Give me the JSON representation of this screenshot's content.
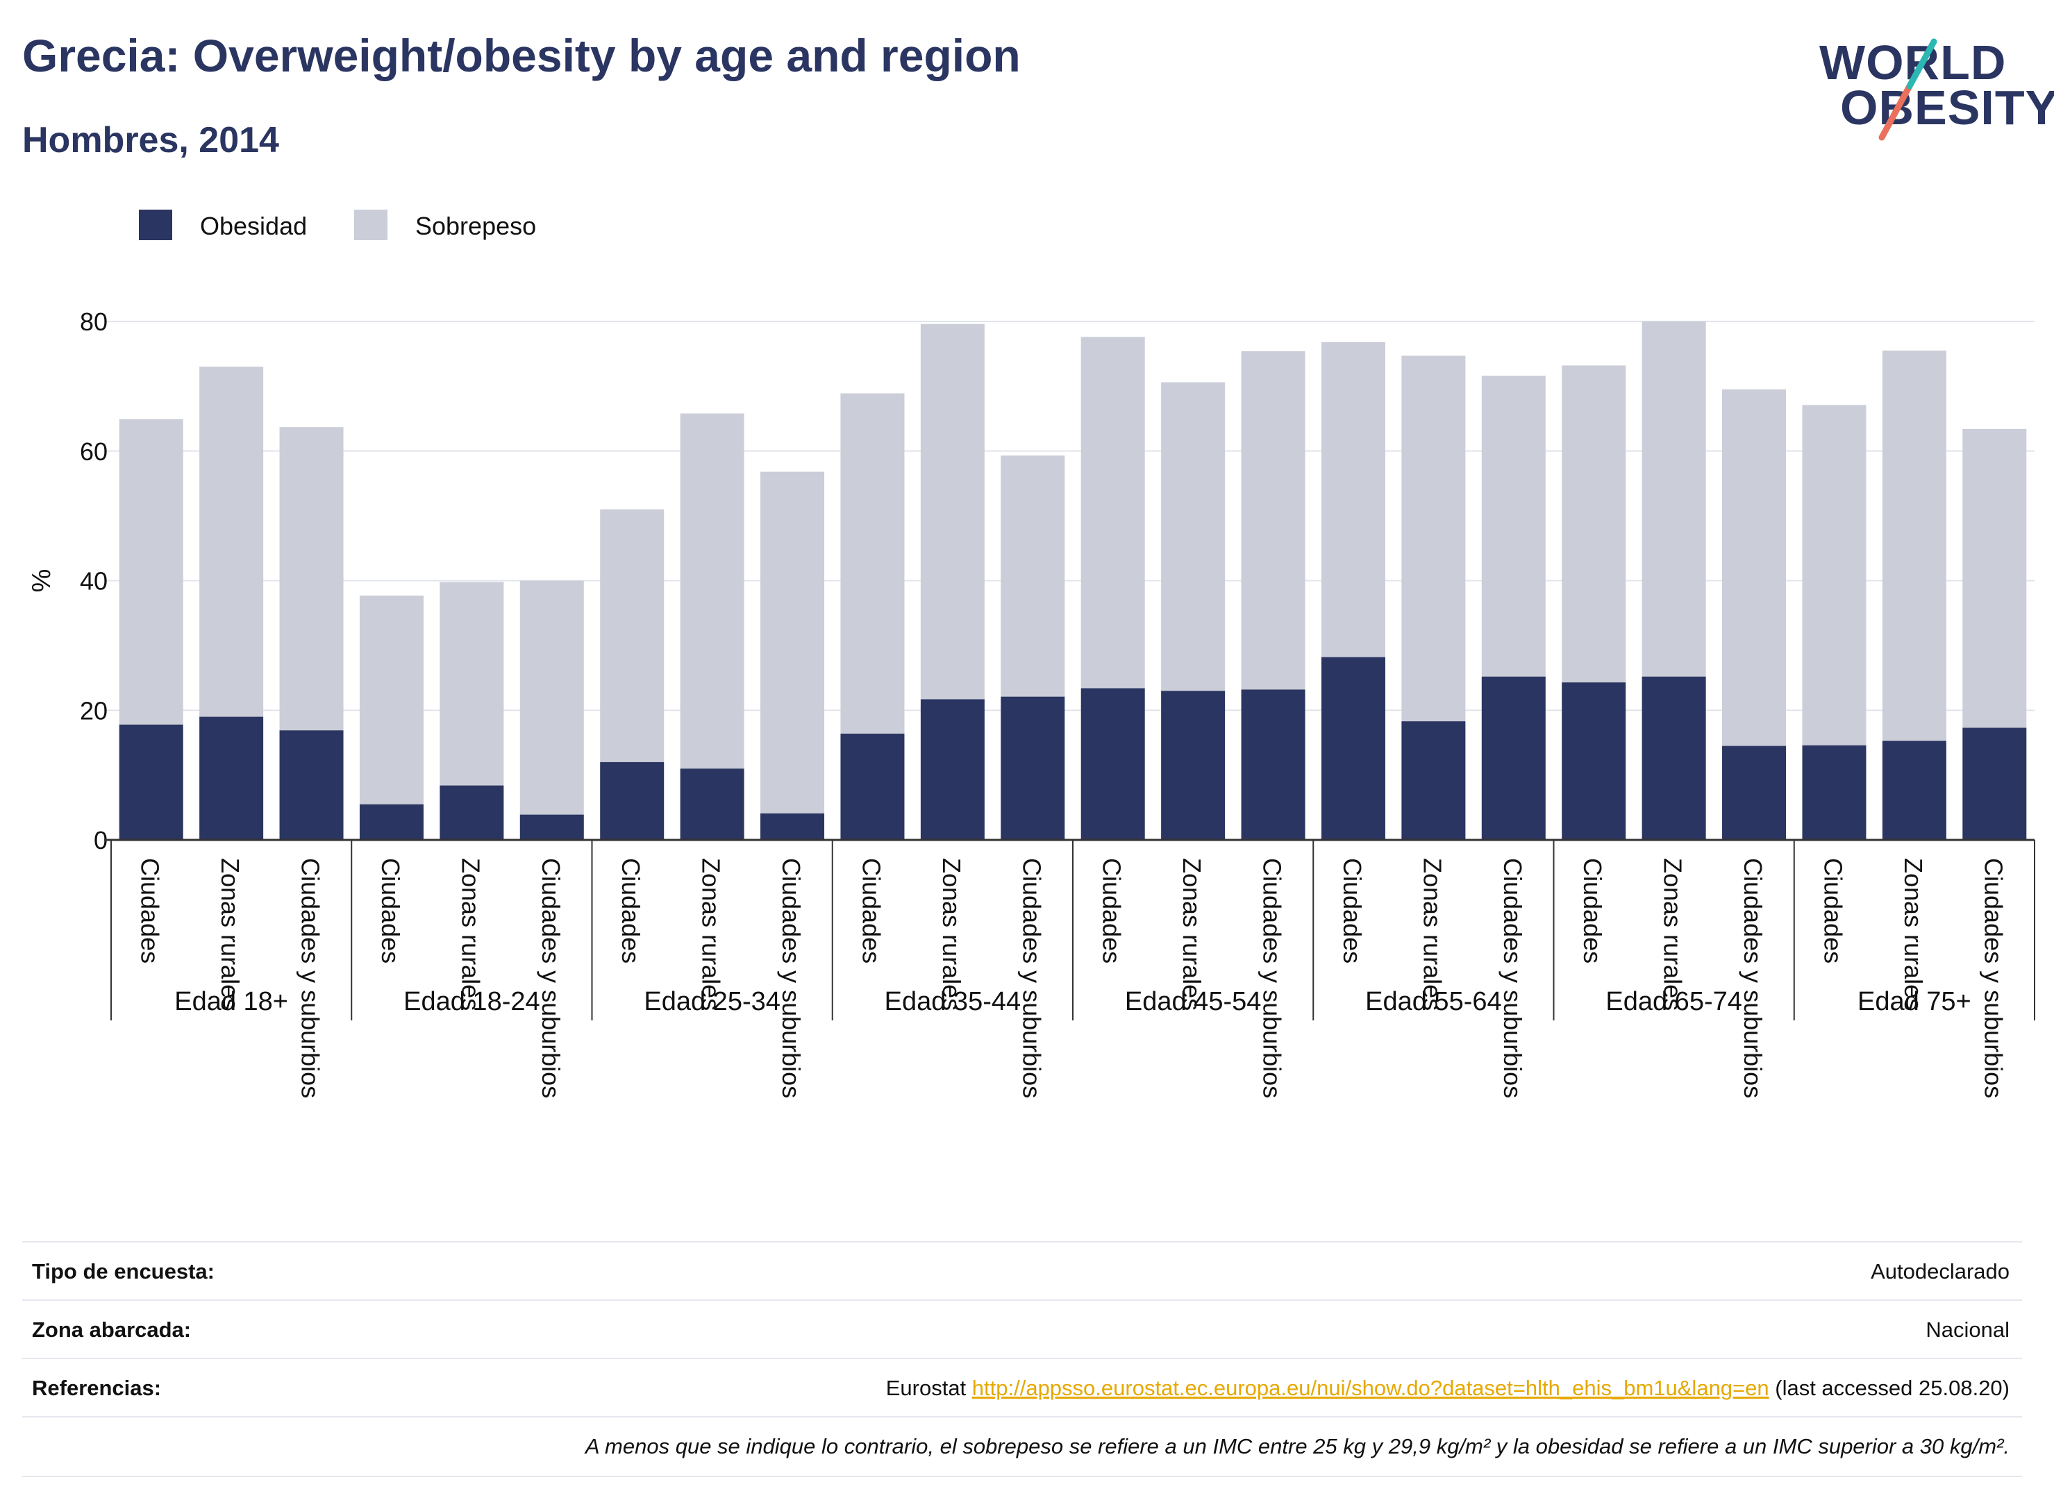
{
  "header": {
    "title": "Grecia: Overweight/obesity by age and region",
    "subtitle": "Hombres, 2014",
    "logo_line1": "WORLD",
    "logo_line2": "OBESITY"
  },
  "colors": {
    "obesity": "#2a3561",
    "overweight": "#cbcdd8",
    "text": "#2a3561",
    "logo_teal": "#2bb7b3",
    "logo_coral": "#e9705c",
    "link": "#e6a800"
  },
  "chart_data": {
    "type": "bar",
    "stacked": true,
    "ylabel": "%",
    "ylim": [
      0,
      80
    ],
    "yticks": [
      0,
      20,
      40,
      60,
      80
    ],
    "grid": true,
    "legend_position": "top-left",
    "groups": [
      {
        "label": "Edad 18+",
        "categories": [
          "Ciudades",
          "Zonas rurales",
          "Ciudades y suburbios"
        ],
        "obesidad": [
          17.8,
          19.0,
          16.9
        ],
        "total": [
          64.9,
          73.0,
          63.7
        ]
      },
      {
        "label": "Edad 18-24",
        "categories": [
          "Ciudades",
          "Zonas rurales",
          "Ciudades y suburbios"
        ],
        "obesidad": [
          5.5,
          8.4,
          3.9
        ],
        "total": [
          37.7,
          39.8,
          40.0
        ]
      },
      {
        "label": "Edad 25-34",
        "categories": [
          "Ciudades",
          "Zonas rurales",
          "Ciudades y suburbios"
        ],
        "obesidad": [
          12.0,
          11.0,
          4.1
        ],
        "total": [
          51.0,
          65.8,
          56.8
        ]
      },
      {
        "label": "Edad 35-44",
        "categories": [
          "Ciudades",
          "Zonas rurales",
          "Ciudades y suburbios"
        ],
        "obesidad": [
          16.4,
          21.7,
          22.1
        ],
        "total": [
          68.9,
          79.6,
          59.3
        ]
      },
      {
        "label": "Edad 45-54",
        "categories": [
          "Ciudades",
          "Zonas rurales",
          "Ciudades y suburbios"
        ],
        "obesidad": [
          23.4,
          23.0,
          23.2
        ],
        "total": [
          77.6,
          70.6,
          75.4
        ]
      },
      {
        "label": "Edad 55-64",
        "categories": [
          "Ciudades",
          "Zonas rurales",
          "Ciudades y suburbios"
        ],
        "obesidad": [
          28.2,
          18.3,
          25.2
        ],
        "total": [
          76.8,
          74.7,
          71.6
        ]
      },
      {
        "label": "Edad 65-74",
        "categories": [
          "Ciudades",
          "Zonas rurales",
          "Ciudades y suburbios"
        ],
        "obesidad": [
          24.3,
          25.2,
          14.5
        ],
        "total": [
          73.2,
          80.0,
          69.5
        ]
      },
      {
        "label": "Edad 75+",
        "categories": [
          "Ciudades",
          "Zonas rurales",
          "Ciudades y suburbios"
        ],
        "obesidad": [
          14.6,
          15.3,
          17.3
        ],
        "total": [
          67.1,
          75.5,
          63.4
        ]
      }
    ],
    "legend": [
      {
        "name": "Obesidad",
        "color": "#2a3561"
      },
      {
        "name": "Sobrepeso",
        "color": "#cbcdd8"
      }
    ]
  },
  "info": {
    "survey_label": "Tipo de encuesta:",
    "survey_value": "Autodeclarado",
    "area_label": "Zona abarcada:",
    "area_value": "Nacional",
    "ref_label": "Referencias:",
    "ref_prefix": "Eurostat ",
    "ref_link": "http://appsso.eurostat.ec.europa.eu/nui/show.do?dataset=hlth_ehis_bm1u&lang=en",
    "ref_suffix": " (last accessed 25.08.20)",
    "note": "A menos que se indique lo contrario, el sobrepeso se refiere a un IMC entre 25 kg y 29,9 kg/m² y la obesidad se refiere a un IMC superior a 30 kg/m²."
  }
}
